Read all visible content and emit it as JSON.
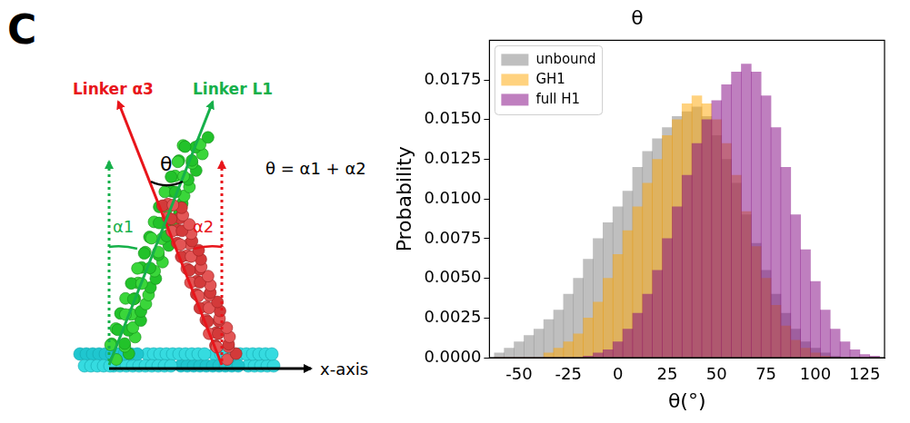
{
  "panel_label": "C",
  "diagram": {
    "linker_a3": "Linker α3",
    "linker_l1": "Linker L1",
    "theta": "θ",
    "formula": "θ = α1 + α2",
    "alpha1": "α1",
    "alpha2": "α2",
    "x_axis": "x-axis"
  },
  "chart_data": {
    "type": "histogram",
    "title": "θ",
    "x_label": "θ(°)",
    "y_label": "Probability",
    "bins": [
      -62.5,
      -57.5,
      -52.5,
      -47.5,
      -42.5,
      -37.5,
      -32.5,
      -27.5,
      -22.5,
      -17.5,
      -12.5,
      -7.5,
      -2.5,
      2.5,
      7.5,
      12.5,
      17.5,
      22.5,
      27.5,
      32.5,
      37.5,
      42.5,
      47.5,
      52.5,
      57.5,
      62.5,
      67.5,
      72.5,
      77.5,
      82.5,
      87.5,
      92.5,
      97.5,
      102.5,
      107.5,
      112.5,
      117.5,
      122.5,
      127.5,
      132.5
    ],
    "series": [
      {
        "name": "unbound",
        "color": "#808080",
        "values": [
          0.0003,
          0.0006,
          0.001,
          0.0014,
          0.0018,
          0.0024,
          0.003,
          0.004,
          0.005,
          0.0062,
          0.0075,
          0.0085,
          0.0095,
          0.0105,
          0.012,
          0.013,
          0.0138,
          0.0145,
          0.0152,
          0.0155,
          0.0158,
          0.0152,
          0.014,
          0.0125,
          0.011,
          0.009,
          0.0072,
          0.0055,
          0.004,
          0.0028,
          0.0018,
          0.001,
          0.0006,
          0.0003,
          0.0001,
          0,
          0,
          0,
          0
        ]
      },
      {
        "name": "GH1",
        "color": "#ffa500",
        "values": [
          0,
          0,
          0,
          0,
          0,
          0.0003,
          0.0006,
          0.001,
          0.0015,
          0.0025,
          0.0035,
          0.005,
          0.0065,
          0.008,
          0.0095,
          0.011,
          0.0125,
          0.014,
          0.015,
          0.016,
          0.0165,
          0.016,
          0.015,
          0.0135,
          0.0115,
          0.0092,
          0.007,
          0.005,
          0.0033,
          0.002,
          0.0011,
          0.0006,
          0.0003,
          0.0001,
          0,
          0,
          0,
          0,
          0
        ]
      },
      {
        "name": "full H1",
        "color": "#800080",
        "values": [
          0,
          0,
          0,
          0,
          0,
          0,
          0,
          0,
          0,
          0.0001,
          0.0003,
          0.0005,
          0.001,
          0.0018,
          0.0028,
          0.004,
          0.0055,
          0.0075,
          0.0095,
          0.0115,
          0.0135,
          0.015,
          0.0162,
          0.0172,
          0.018,
          0.0185,
          0.018,
          0.0165,
          0.0145,
          0.012,
          0.009,
          0.0068,
          0.0048,
          0.003,
          0.0018,
          0.001,
          0.0005,
          0.0002,
          0.0001
        ]
      }
    ],
    "xlim": [
      -65,
      135
    ],
    "xticks": [
      -50,
      -25,
      0,
      25,
      50,
      75,
      100,
      125
    ],
    "ylim": [
      0,
      0.02
    ],
    "yticks": [
      {
        "value": 0,
        "label": "0.0000"
      },
      {
        "value": 0.0025,
        "label": "0.0025"
      },
      {
        "value": 0.005,
        "label": "0.0050"
      },
      {
        "value": 0.0075,
        "label": "0.0075"
      },
      {
        "value": 0.01,
        "label": "0.0100"
      },
      {
        "value": 0.0125,
        "label": "0.0125"
      },
      {
        "value": 0.015,
        "label": "0.0150"
      },
      {
        "value": 0.0175,
        "label": "0.0175"
      }
    ],
    "grid": false,
    "legend": "upper left"
  }
}
